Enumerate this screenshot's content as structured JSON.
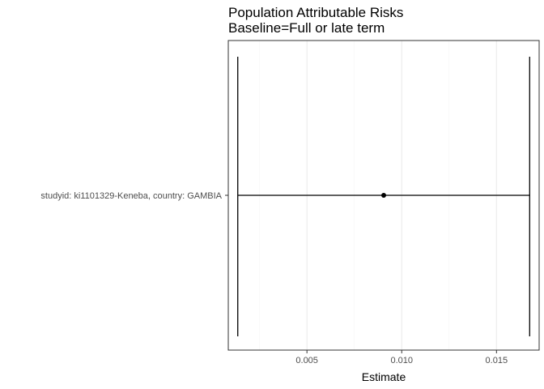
{
  "chart_data": {
    "type": "forest",
    "title": "Population Attributable Risks",
    "subtitle": "Baseline=Full or late term",
    "xlabel": "Estimate",
    "ylabel": "",
    "categories": [
      "studyid: ki1101329-Keneba, country: GAMBIA"
    ],
    "estimates": [
      0.00905
    ],
    "ci_lower": [
      0.00135
    ],
    "ci_upper": [
      0.01675
    ],
    "xlim": [
      0.00085,
      0.01725
    ],
    "x_ticks": [
      0.005,
      0.01,
      0.015
    ],
    "x_tick_labels": [
      "0.005",
      "0.010",
      "0.015"
    ],
    "grid": true,
    "legend": "none",
    "colors": {
      "panel_border": "#333333",
      "grid_major": "#ebebeb",
      "grid_minor": "#f5f5f5",
      "marks": "#000000"
    }
  }
}
